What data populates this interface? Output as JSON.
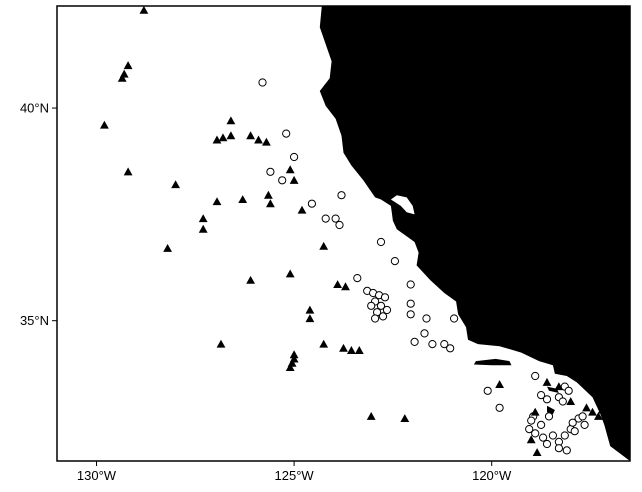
{
  "map": {
    "type": "station-map",
    "region": "California Current",
    "extent": {
      "lon": [
        -131.0,
        -116.5
      ],
      "lat": [
        31.7,
        42.4
      ]
    },
    "colors": {
      "land": "#000000",
      "ocean": "#ffffff",
      "frame": "#000000"
    },
    "x_ticks": [
      {
        "value": -130,
        "label": "130°W"
      },
      {
        "value": -125,
        "label": "125°W"
      },
      {
        "value": -120,
        "label": "120°W"
      }
    ],
    "y_ticks": [
      {
        "value": 40,
        "label": "40°N"
      },
      {
        "value": 35,
        "label": "35°N"
      }
    ],
    "coastline_lonlat": [
      [
        -124.3,
        42.4
      ],
      [
        -124.35,
        41.9
      ],
      [
        -124.2,
        41.5
      ],
      [
        -124.05,
        41.1
      ],
      [
        -124.1,
        40.7
      ],
      [
        -124.35,
        40.4
      ],
      [
        -124.2,
        40.05
      ],
      [
        -123.95,
        39.75
      ],
      [
        -123.8,
        39.35
      ],
      [
        -123.75,
        38.95
      ],
      [
        -123.55,
        38.65
      ],
      [
        -123.25,
        38.3
      ],
      [
        -122.95,
        37.9
      ],
      [
        -122.8,
        37.85
      ],
      [
        -122.55,
        37.7
      ],
      [
        -122.5,
        37.35
      ],
      [
        -122.4,
        37.15
      ],
      [
        -122.1,
        36.95
      ],
      [
        -121.95,
        36.85
      ],
      [
        -121.85,
        36.6
      ],
      [
        -121.9,
        36.3
      ],
      [
        -121.55,
        35.95
      ],
      [
        -121.2,
        35.65
      ],
      [
        -120.9,
        35.45
      ],
      [
        -120.85,
        35.15
      ],
      [
        -120.65,
        34.85
      ],
      [
        -120.6,
        34.55
      ],
      [
        -120.35,
        34.45
      ],
      [
        -119.8,
        34.4
      ],
      [
        -119.25,
        34.25
      ],
      [
        -118.8,
        34.05
      ],
      [
        -118.45,
        33.95
      ],
      [
        -118.4,
        33.75
      ],
      [
        -118.1,
        33.7
      ],
      [
        -117.85,
        33.55
      ],
      [
        -117.45,
        33.2
      ],
      [
        -117.25,
        32.8
      ],
      [
        -117.15,
        32.55
      ],
      [
        -117.0,
        32.05
      ],
      [
        -116.5,
        31.7
      ]
    ],
    "bay_lonlat": [
      [
        -122.55,
        37.85
      ],
      [
        -122.4,
        37.95
      ],
      [
        -122.15,
        37.9
      ],
      [
        -122.0,
        37.7
      ],
      [
        -121.95,
        37.5
      ],
      [
        -122.15,
        37.55
      ],
      [
        -122.3,
        37.7
      ]
    ],
    "islands_lonlat": [
      [
        [
          -120.4,
          34.05
        ],
        [
          -119.9,
          34.1
        ],
        [
          -119.55,
          34.05
        ],
        [
          -119.5,
          33.95
        ],
        [
          -120.0,
          33.95
        ],
        [
          -120.45,
          33.97
        ]
      ],
      [
        [
          -118.6,
          33.45
        ],
        [
          -118.35,
          33.4
        ],
        [
          -118.3,
          33.3
        ],
        [
          -118.55,
          33.35
        ]
      ],
      [
        [
          -118.6,
          33.0
        ],
        [
          -118.4,
          32.9
        ],
        [
          -118.45,
          32.8
        ],
        [
          -118.6,
          32.85
        ]
      ]
    ],
    "legend": []
  },
  "stations": {
    "triangles": [
      [
        -128.8,
        42.3
      ],
      [
        -129.2,
        41.0
      ],
      [
        -129.3,
        40.8
      ],
      [
        -129.35,
        40.7
      ],
      [
        -129.8,
        39.6
      ],
      [
        -129.2,
        38.5
      ],
      [
        -128.0,
        38.2
      ],
      [
        -127.3,
        37.4
      ],
      [
        -127.3,
        37.15
      ],
      [
        -126.95,
        37.8
      ],
      [
        -128.2,
        36.7
      ],
      [
        -126.1,
        35.95
      ],
      [
        -126.85,
        34.45
      ],
      [
        -126.6,
        39.7
      ],
      [
        -126.6,
        39.35
      ],
      [
        -126.8,
        39.3
      ],
      [
        -126.95,
        39.25
      ],
      [
        -126.1,
        39.35
      ],
      [
        -125.9,
        39.25
      ],
      [
        -125.7,
        39.2
      ],
      [
        -126.3,
        37.85
      ],
      [
        -125.65,
        37.95
      ],
      [
        -125.6,
        37.75
      ],
      [
        -125.0,
        38.3
      ],
      [
        -125.1,
        38.55
      ],
      [
        -124.8,
        37.6
      ],
      [
        -124.25,
        36.75
      ],
      [
        -125.1,
        36.1
      ],
      [
        -124.6,
        35.25
      ],
      [
        -124.6,
        35.05
      ],
      [
        -123.9,
        35.85
      ],
      [
        -123.7,
        35.8
      ],
      [
        -124.25,
        34.45
      ],
      [
        -123.75,
        34.35
      ],
      [
        -123.55,
        34.3
      ],
      [
        -123.35,
        34.3
      ],
      [
        -125.0,
        34.2
      ],
      [
        -125.0,
        34.1
      ],
      [
        -125.05,
        34.0
      ],
      [
        -125.1,
        33.9
      ],
      [
        -123.05,
        32.75
      ],
      [
        -122.2,
        32.7
      ],
      [
        -118.9,
        32.85
      ],
      [
        -119.0,
        32.2
      ],
      [
        -118.85,
        31.9
      ],
      [
        -119.8,
        33.5
      ],
      [
        -118.3,
        33.45
      ],
      [
        -118.6,
        33.55
      ],
      [
        -118.0,
        33.1
      ],
      [
        -117.6,
        32.95
      ],
      [
        -117.45,
        32.85
      ],
      [
        -117.3,
        32.75
      ],
      [
        -117.2,
        32.9
      ]
    ],
    "circles": [
      [
        -125.8,
        40.6
      ],
      [
        -125.2,
        39.4
      ],
      [
        -125.0,
        38.85
      ],
      [
        -125.6,
        38.5
      ],
      [
        -125.3,
        38.3
      ],
      [
        -123.8,
        37.95
      ],
      [
        -124.55,
        37.75
      ],
      [
        -124.2,
        37.4
      ],
      [
        -123.95,
        37.4
      ],
      [
        -123.85,
        37.25
      ],
      [
        -122.8,
        36.85
      ],
      [
        -122.45,
        36.4
      ],
      [
        -123.4,
        36.0
      ],
      [
        -122.05,
        35.85
      ],
      [
        -122.05,
        35.4
      ],
      [
        -121.65,
        35.05
      ],
      [
        -121.7,
        34.7
      ],
      [
        -121.5,
        34.45
      ],
      [
        -121.2,
        34.45
      ],
      [
        -121.05,
        34.35
      ],
      [
        -120.95,
        35.05
      ],
      [
        -121.95,
        34.5
      ],
      [
        -122.05,
        35.15
      ],
      [
        -123.15,
        35.7
      ],
      [
        -123.0,
        35.65
      ],
      [
        -122.85,
        35.6
      ],
      [
        -122.7,
        35.55
      ],
      [
        -122.95,
        35.45
      ],
      [
        -122.8,
        35.35
      ],
      [
        -122.65,
        35.25
      ],
      [
        -122.9,
        35.2
      ],
      [
        -123.05,
        35.35
      ],
      [
        -122.95,
        35.05
      ],
      [
        -122.75,
        35.1
      ],
      [
        -120.1,
        33.35
      ],
      [
        -119.8,
        32.95
      ],
      [
        -118.9,
        33.7
      ],
      [
        -118.75,
        33.25
      ],
      [
        -118.6,
        33.15
      ],
      [
        -118.15,
        33.45
      ],
      [
        -118.05,
        33.35
      ],
      [
        -118.3,
        33.2
      ],
      [
        -118.2,
        33.1
      ],
      [
        -118.45,
        32.3
      ],
      [
        -118.6,
        32.1
      ],
      [
        -118.75,
        32.55
      ],
      [
        -118.95,
        32.75
      ],
      [
        -119.0,
        32.65
      ],
      [
        -119.05,
        32.45
      ],
      [
        -118.9,
        32.35
      ],
      [
        -118.7,
        32.25
      ],
      [
        -118.55,
        32.75
      ],
      [
        -118.3,
        32.15
      ],
      [
        -118.15,
        32.3
      ],
      [
        -118.0,
        32.45
      ],
      [
        -117.95,
        32.6
      ],
      [
        -117.8,
        32.7
      ],
      [
        -117.65,
        32.55
      ],
      [
        -117.9,
        32.4
      ],
      [
        -118.1,
        31.95
      ],
      [
        -118.3,
        32.0
      ],
      [
        -117.7,
        32.75
      ]
    ]
  }
}
